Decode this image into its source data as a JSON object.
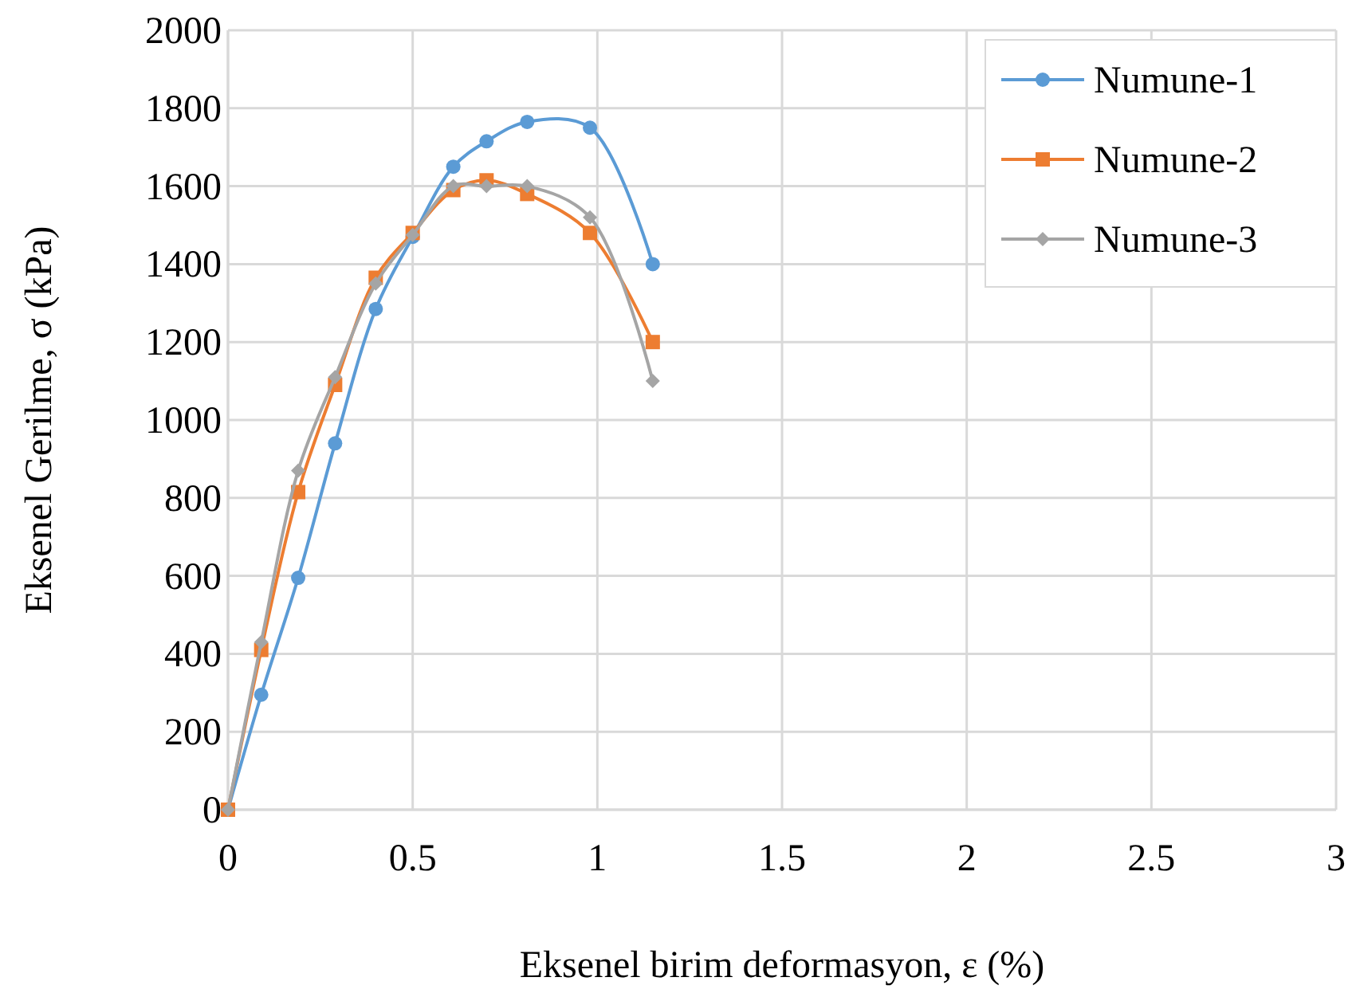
{
  "chart_data": {
    "type": "line",
    "xlabel": "Eksenel birim deformasyon, ε (%)",
    "ylabel": "Eksenel Gerilme, σ (kPa)",
    "x": [
      0,
      0.09,
      0.19,
      0.29,
      0.4,
      0.5,
      0.61,
      0.7,
      0.81,
      0.98,
      1.15
    ],
    "series": [
      {
        "name": "Numune-1",
        "color": "#5b9bd5",
        "marker": "circle",
        "values": [
          0,
          295,
          595,
          940,
          1285,
          1470,
          1650,
          1715,
          1765,
          1750,
          1400
        ]
      },
      {
        "name": "Numune-2",
        "color": "#ed7d31",
        "marker": "square",
        "values": [
          0,
          410,
          815,
          1090,
          1365,
          1480,
          1590,
          1615,
          1580,
          1480,
          1200
        ]
      },
      {
        "name": "Numune-3",
        "color": "#a5a5a5",
        "marker": "diamond",
        "values": [
          0,
          430,
          870,
          1110,
          1350,
          1475,
          1600,
          1600,
          1600,
          1520,
          1100
        ]
      }
    ],
    "xlim": [
      0,
      3
    ],
    "xticks": [
      0,
      0.5,
      1,
      1.5,
      2,
      2.5,
      3
    ],
    "ylim": [
      0,
      2000
    ],
    "yticks": [
      0,
      200,
      400,
      600,
      800,
      1000,
      1200,
      1400,
      1600,
      1800,
      2000
    ],
    "grid": true,
    "legend": "top right"
  }
}
